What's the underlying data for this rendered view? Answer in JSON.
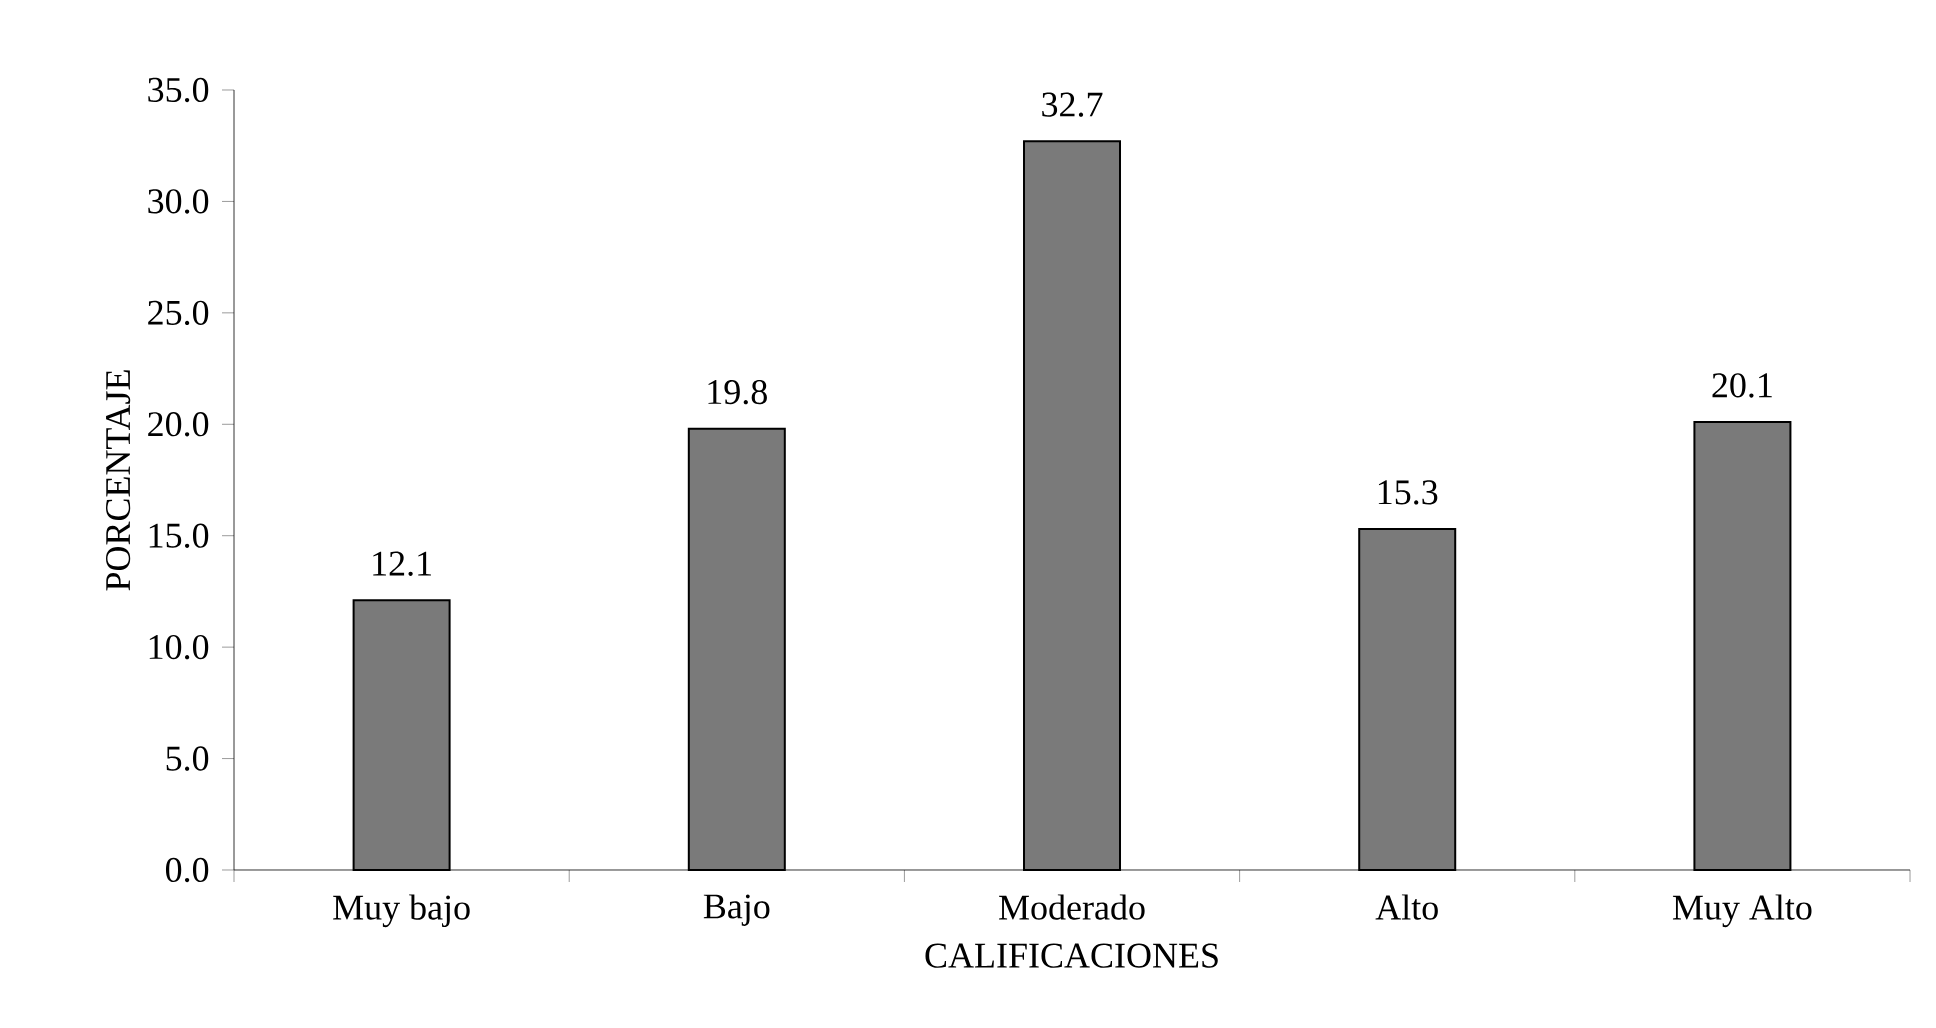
{
  "chart_data": {
    "type": "bar",
    "xlabel": "CALIFICACIONES",
    "ylabel": "PORCENTAJE",
    "categories": [
      "Muy bajo",
      "Bajo",
      "Moderado",
      "Alto",
      "Muy Alto"
    ],
    "values": [
      12.1,
      19.8,
      32.7,
      15.3,
      20.1
    ],
    "value_labels": [
      "12.1",
      "19.8",
      "32.7",
      "15.3",
      "20.1"
    ],
    "color": "#7a7a7a",
    "ylim": [
      0,
      35
    ],
    "yticks": [
      {
        "value": 0,
        "label": "0.0"
      },
      {
        "value": 5,
        "label": "5.0"
      },
      {
        "value": 10,
        "label": "10.0"
      },
      {
        "value": 15,
        "label": "15.0"
      },
      {
        "value": 20,
        "label": "20.0"
      },
      {
        "value": 25,
        "label": "25.0"
      },
      {
        "value": 30,
        "label": "30.0"
      },
      {
        "value": 35,
        "label": "35.0"
      }
    ],
    "grid": false
  }
}
